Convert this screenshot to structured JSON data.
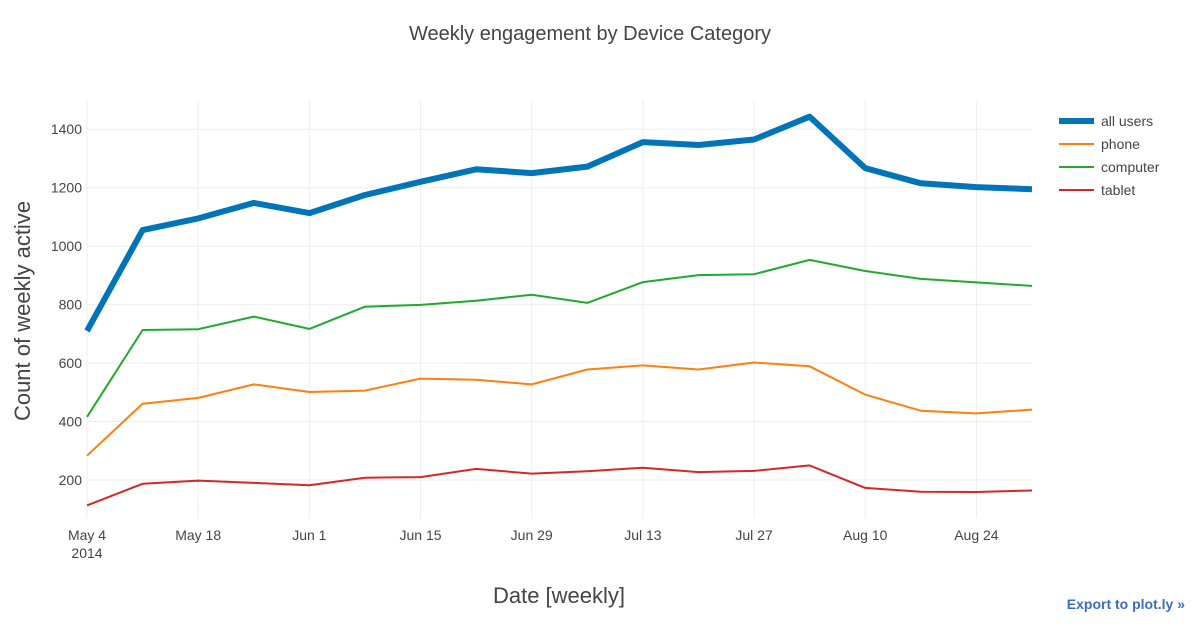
{
  "export_link": "Export to plot.ly »",
  "chart_data": {
    "type": "line",
    "title": "Weekly engagement by Device Category",
    "xlabel": "Date [weekly]",
    "ylabel": "Count of weekly active",
    "x": [
      "2014-05-04",
      "2014-05-11",
      "2014-05-18",
      "2014-05-25",
      "2014-06-01",
      "2014-06-08",
      "2014-06-15",
      "2014-06-22",
      "2014-06-29",
      "2014-07-06",
      "2014-07-13",
      "2014-07-20",
      "2014-07-27",
      "2014-08-03",
      "2014-08-10",
      "2014-08-17",
      "2014-08-24",
      "2014-08-31"
    ],
    "x_ticks": [
      "May 4",
      "May 18",
      "Jun 1",
      "Jun 15",
      "Jun 29",
      "Jul 13",
      "Jul 27",
      "Aug 10",
      "Aug 24"
    ],
    "x_tick_dates": [
      "2014-05-04",
      "2014-05-18",
      "2014-06-01",
      "2014-06-15",
      "2014-06-29",
      "2014-07-13",
      "2014-07-27",
      "2014-08-10",
      "2014-08-24"
    ],
    "x_year_label": "2014",
    "y_ticks": [
      200,
      400,
      600,
      800,
      1000,
      1200,
      1400
    ],
    "ylim": [
      70,
      1500
    ],
    "grid": true,
    "legend_position": "top-right",
    "series": [
      {
        "name": "all users",
        "color": "#0074b8",
        "width": 6,
        "values": [
          710,
          1055,
          1095,
          1148,
          1113,
          1175,
          1220,
          1263,
          1250,
          1272,
          1356,
          1346,
          1365,
          1443,
          1267,
          1215,
          1202,
          1195
        ]
      },
      {
        "name": "phone",
        "color": "#ff7f0e",
        "width": 2,
        "values": [
          283,
          461,
          481,
          527,
          501,
          506,
          547,
          543,
          527,
          578,
          592,
          578,
          602,
          589,
          492,
          437,
          428,
          441
        ]
      },
      {
        "name": "computer",
        "color": "#1faa2e",
        "width": 2,
        "values": [
          416,
          713,
          716,
          759,
          717,
          793,
          799,
          813,
          834,
          806,
          877,
          901,
          904,
          953,
          915,
          888,
          876,
          864
        ]
      },
      {
        "name": "tablet",
        "color": "#d62728",
        "width": 2,
        "values": [
          113,
          187,
          198,
          190,
          182,
          208,
          210,
          238,
          222,
          230,
          242,
          227,
          231,
          250,
          173,
          160,
          159,
          164
        ]
      }
    ]
  }
}
